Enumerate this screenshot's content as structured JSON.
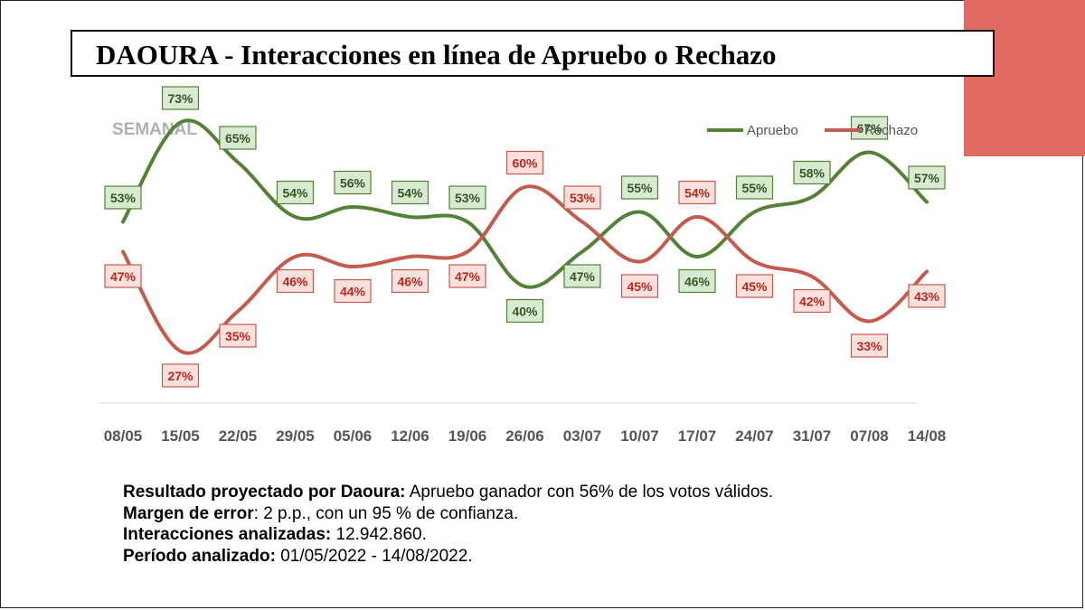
{
  "title": "DAOURA - Interacciones en línea de Apruebo o Rechazo",
  "colors": {
    "apruebo_line": "#548235",
    "apruebo_label_bg": "#d8ead0",
    "apruebo_label_text": "#375623",
    "rechazo_line": "#c55a4e",
    "rechazo_label_bg": "#fbe0dc",
    "rechazo_label_text": "#c0261c",
    "accent": "#e06b61"
  },
  "chart_data": {
    "type": "line",
    "subtitle": "SEMANAL",
    "categories": [
      "08/05",
      "15/05",
      "22/05",
      "29/05",
      "05/06",
      "12/06",
      "19/06",
      "26/06",
      "03/07",
      "10/07",
      "17/07",
      "24/07",
      "31/07",
      "07/08",
      "14/08"
    ],
    "series": [
      {
        "name": "Apruebo",
        "values": [
          53,
          73,
          65,
          54,
          56,
          54,
          53,
          40,
          47,
          55,
          46,
          55,
          58,
          67,
          57
        ],
        "labels": [
          "53%",
          "73%",
          "65%",
          "54%",
          "56%",
          "54%",
          "53%",
          "40%",
          "47%",
          "55%",
          "46%",
          "55%",
          "58%",
          "67%",
          "57%"
        ]
      },
      {
        "name": "Rechazo",
        "values": [
          47,
          27,
          35,
          46,
          44,
          46,
          47,
          60,
          53,
          45,
          54,
          45,
          42,
          33,
          43
        ],
        "labels": [
          "47%",
          "27%",
          "35%",
          "46%",
          "44%",
          "46%",
          "47%",
          "60%",
          "53%",
          "45%",
          "54%",
          "45%",
          "42%",
          "33%",
          "43%"
        ]
      }
    ],
    "ylim": [
      0,
      100
    ],
    "legend": "top-right",
    "grid": false
  },
  "footer": [
    {
      "key": "Resultado proyectado por Daoura:",
      "value": " Apruebo ganador con 56% de los votos válidos."
    },
    {
      "key": "Margen de error",
      "value": ": 2 p.p., con un 95 % de confianza."
    },
    {
      "key": "Interacciones analizadas:",
      "value": " 12.942.860."
    },
    {
      "key": "Período analizado:",
      "value": " 01/05/2022 - 14/08/2022."
    }
  ]
}
